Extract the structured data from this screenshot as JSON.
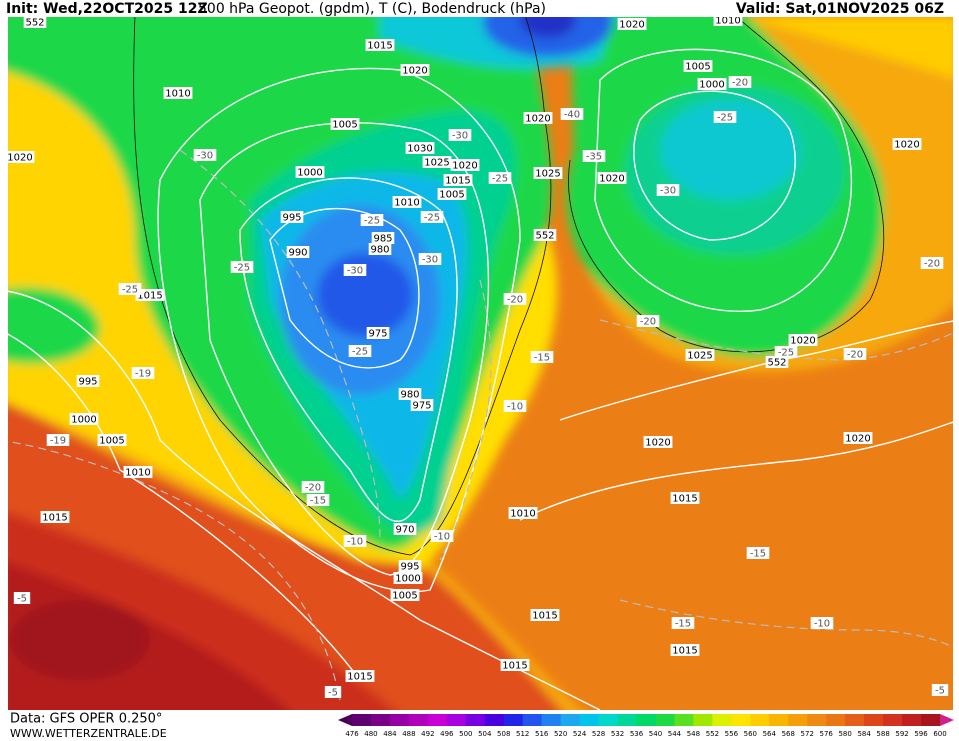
{
  "header": {
    "init": "Init: Wed,22OCT2025 12Z",
    "title": "500 hPa Geopot. (gpdm), T (C), Bodendruck (hPa)",
    "valid": "Valid: Sat,01NOV2025 06Z"
  },
  "footer": {
    "source": "Data: GFS OPER 0.250°",
    "site": "WWW.WETTERZENTRALE.DE"
  },
  "colorbar": {
    "labels": [
      476,
      480,
      484,
      488,
      492,
      496,
      500,
      504,
      508,
      512,
      516,
      520,
      524,
      528,
      532,
      536,
      540,
      544,
      548,
      552,
      556,
      560,
      564,
      568,
      572,
      576,
      580,
      584,
      588,
      592,
      596,
      600
    ],
    "colors": [
      "#4a0058",
      "#5e0070",
      "#7a0088",
      "#9400a4",
      "#b000bc",
      "#c800d4",
      "#a800e0",
      "#7800e0",
      "#4800e0",
      "#2424e8",
      "#2454f0",
      "#2080f0",
      "#1ea8f0",
      "#00c4ec",
      "#00d8cc",
      "#00d898",
      "#00d868",
      "#1ed844",
      "#5ae020",
      "#a0e800",
      "#dcf000",
      "#ffe400",
      "#ffcc00",
      "#f8b400",
      "#f59e0a",
      "#ee8a14",
      "#ea7614",
      "#e35e16",
      "#dc4618",
      "#d2321e",
      "#c0201e",
      "#a8141e",
      "#d0208a"
    ]
  },
  "map_labels": {
    "pressure": [
      1015,
      1020,
      1010,
      1020,
      1005,
      1000,
      995,
      990,
      985,
      980,
      975,
      980,
      975,
      970,
      995,
      1000,
      1005,
      1030,
      1025,
      1020,
      1015,
      1005,
      1010,
      1020,
      1025,
      1020,
      1020,
      1010,
      1005,
      1000,
      1020,
      1020,
      1025,
      1020,
      1020,
      1015,
      1010,
      1015,
      1015,
      1015,
      1015,
      1015,
      1010,
      1005,
      1000,
      995,
      1015
    ],
    "geopotential": [
      552,
      552,
      552
    ],
    "temperature": [
      -30,
      -25,
      -25,
      -30,
      -25,
      -30,
      -25,
      -25,
      -30,
      -20,
      -15,
      -10,
      -20,
      -15,
      -10,
      -10,
      -40,
      -35,
      -30,
      -25,
      -20,
      -20,
      -25,
      -20,
      -20,
      -25,
      -19,
      -19,
      -15,
      -15,
      -10,
      -5,
      -5,
      -5
    ]
  }
}
